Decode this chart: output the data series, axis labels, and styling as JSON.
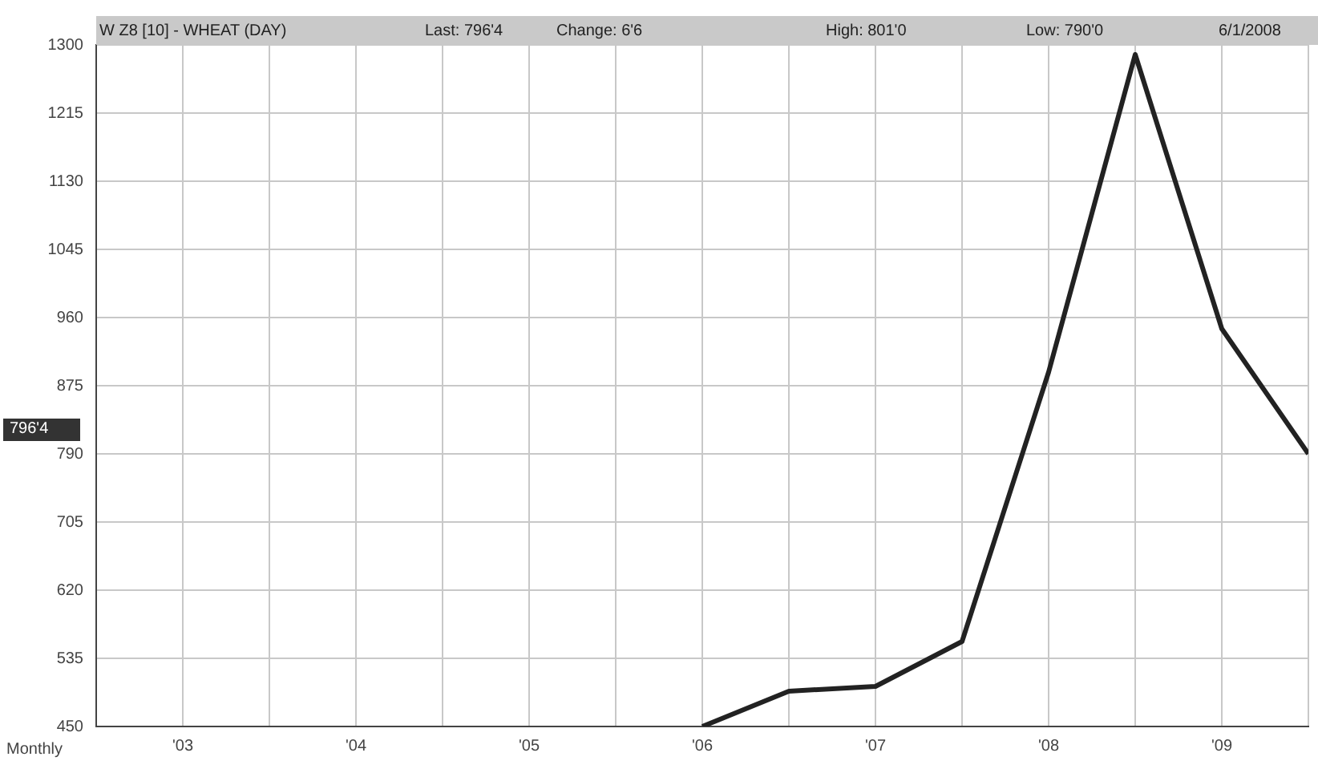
{
  "chart_data": {
    "type": "line",
    "xlabel": "Monthly",
    "annotations": [
      "W Z8 [10] - WHEAT (DAY)",
      "Last: 796'4",
      "Change:  6'6",
      "High: 801'0",
      "Low: 790'0",
      "6/1/2008",
      "796'4"
    ],
    "x": [
      2006,
      2006.5,
      2007,
      2007.5,
      2008,
      2008.5,
      2009,
      2009.5
    ],
    "series": [
      {
        "color": "#222222",
        "values": [
          450,
          494,
          500,
          556,
          892,
          1288,
          946,
          790
        ]
      }
    ],
    "xlim": [
      2002.5,
      2009.5
    ],
    "xticks": [
      {
        "value": 2002.5,
        "label": null
      },
      {
        "value": 2003,
        "label": "'03"
      },
      {
        "value": 2003.5,
        "label": null
      },
      {
        "value": 2004,
        "label": "'04"
      },
      {
        "value": 2004.5,
        "label": null
      },
      {
        "value": 2005,
        "label": "'05"
      },
      {
        "value": 2005.5,
        "label": null
      },
      {
        "value": 2006,
        "label": "'06"
      },
      {
        "value": 2006.5,
        "label": null
      },
      {
        "value": 2007,
        "label": "'07"
      },
      {
        "value": 2007.5,
        "label": null
      },
      {
        "value": 2008,
        "label": "'08"
      },
      {
        "value": 2008.5,
        "label": null
      },
      {
        "value": 2009,
        "label": "'09"
      },
      {
        "value": 2009.5,
        "label": null
      }
    ],
    "ylim": [
      450,
      1300
    ],
    "yticks": [
      450,
      535,
      620,
      705,
      790,
      875,
      960,
      1045,
      1130,
      1215,
      1300
    ],
    "grid": true,
    "legend": false,
    "marker": "none",
    "line_style": "solid"
  }
}
